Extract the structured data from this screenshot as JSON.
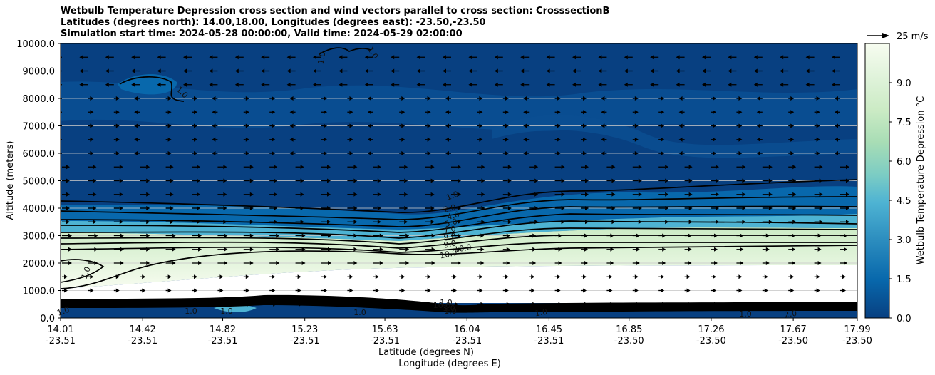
{
  "chart_data": {
    "type": "heatmap",
    "title_lines": [
      "Wetbulb Temperature Depression cross section and wind vectors parallel to cross section: CrosssectionB",
      "Latitudes (degrees north): 14.00,18.00, Longitudes (degrees east): -23.50,-23.50",
      "Simulation start time: 2024-05-28 00:00:00, Valid time: 2024-05-29 02:00:00"
    ],
    "xlabel_lines": [
      "Latitude (degrees N)",
      "Longitude (degrees E)"
    ],
    "ylabel": "Altitude (meters)",
    "x_ticks": [
      {
        "lat": "14.01",
        "lon": "-23.51"
      },
      {
        "lat": "14.42",
        "lon": "-23.51"
      },
      {
        "lat": "14.82",
        "lon": "-23.51"
      },
      {
        "lat": "15.23",
        "lon": "-23.51"
      },
      {
        "lat": "15.63",
        "lon": "-23.51"
      },
      {
        "lat": "16.04",
        "lon": "-23.51"
      },
      {
        "lat": "16.45",
        "lon": "-23.51"
      },
      {
        "lat": "16.85",
        "lon": "-23.50"
      },
      {
        "lat": "17.26",
        "lon": "-23.50"
      },
      {
        "lat": "17.67",
        "lon": "-23.50"
      },
      {
        "lat": "17.99",
        "lon": "-23.50"
      }
    ],
    "y_ticks": [
      "0.0",
      "1000.0",
      "2000.0",
      "3000.0",
      "4000.0",
      "5000.0",
      "6000.0",
      "7000.0",
      "8000.0",
      "9000.0",
      "10000.0"
    ],
    "ylim": [
      0,
      10000
    ],
    "xlim": [
      14.01,
      17.99
    ],
    "colorbar": {
      "label": "Wetbulb Temperature Depression °C",
      "ticks": [
        "0.0",
        "1.5",
        "3.0",
        "4.5",
        "6.0",
        "7.5",
        "9.0"
      ],
      "range": [
        0,
        10.5
      ],
      "colors": [
        "#084081",
        "#0868ac",
        "#2b8cbe",
        "#4eb3d3",
        "#7bccc4",
        "#a8ddb5",
        "#ccebc5",
        "#e0f3db",
        "#f7fcf0"
      ]
    },
    "quiver_key": "25 m/s",
    "contour_labels": [
      "1.0",
      "2.0",
      "4.0",
      "5.0",
      "7.0",
      "8.0",
      "9.0",
      "10.0",
      "10.0",
      "1.0",
      "1.0",
      "1.0",
      "1.0",
      "1.0",
      "1.0",
      "1.0",
      "1.0",
      "1.0",
      "1.0",
      "2.0",
      "10.0",
      "1.0",
      "1.0",
      "1.0"
    ],
    "dry_layer_depression_max": 10.5,
    "upper_level_depression": 0.4
  }
}
